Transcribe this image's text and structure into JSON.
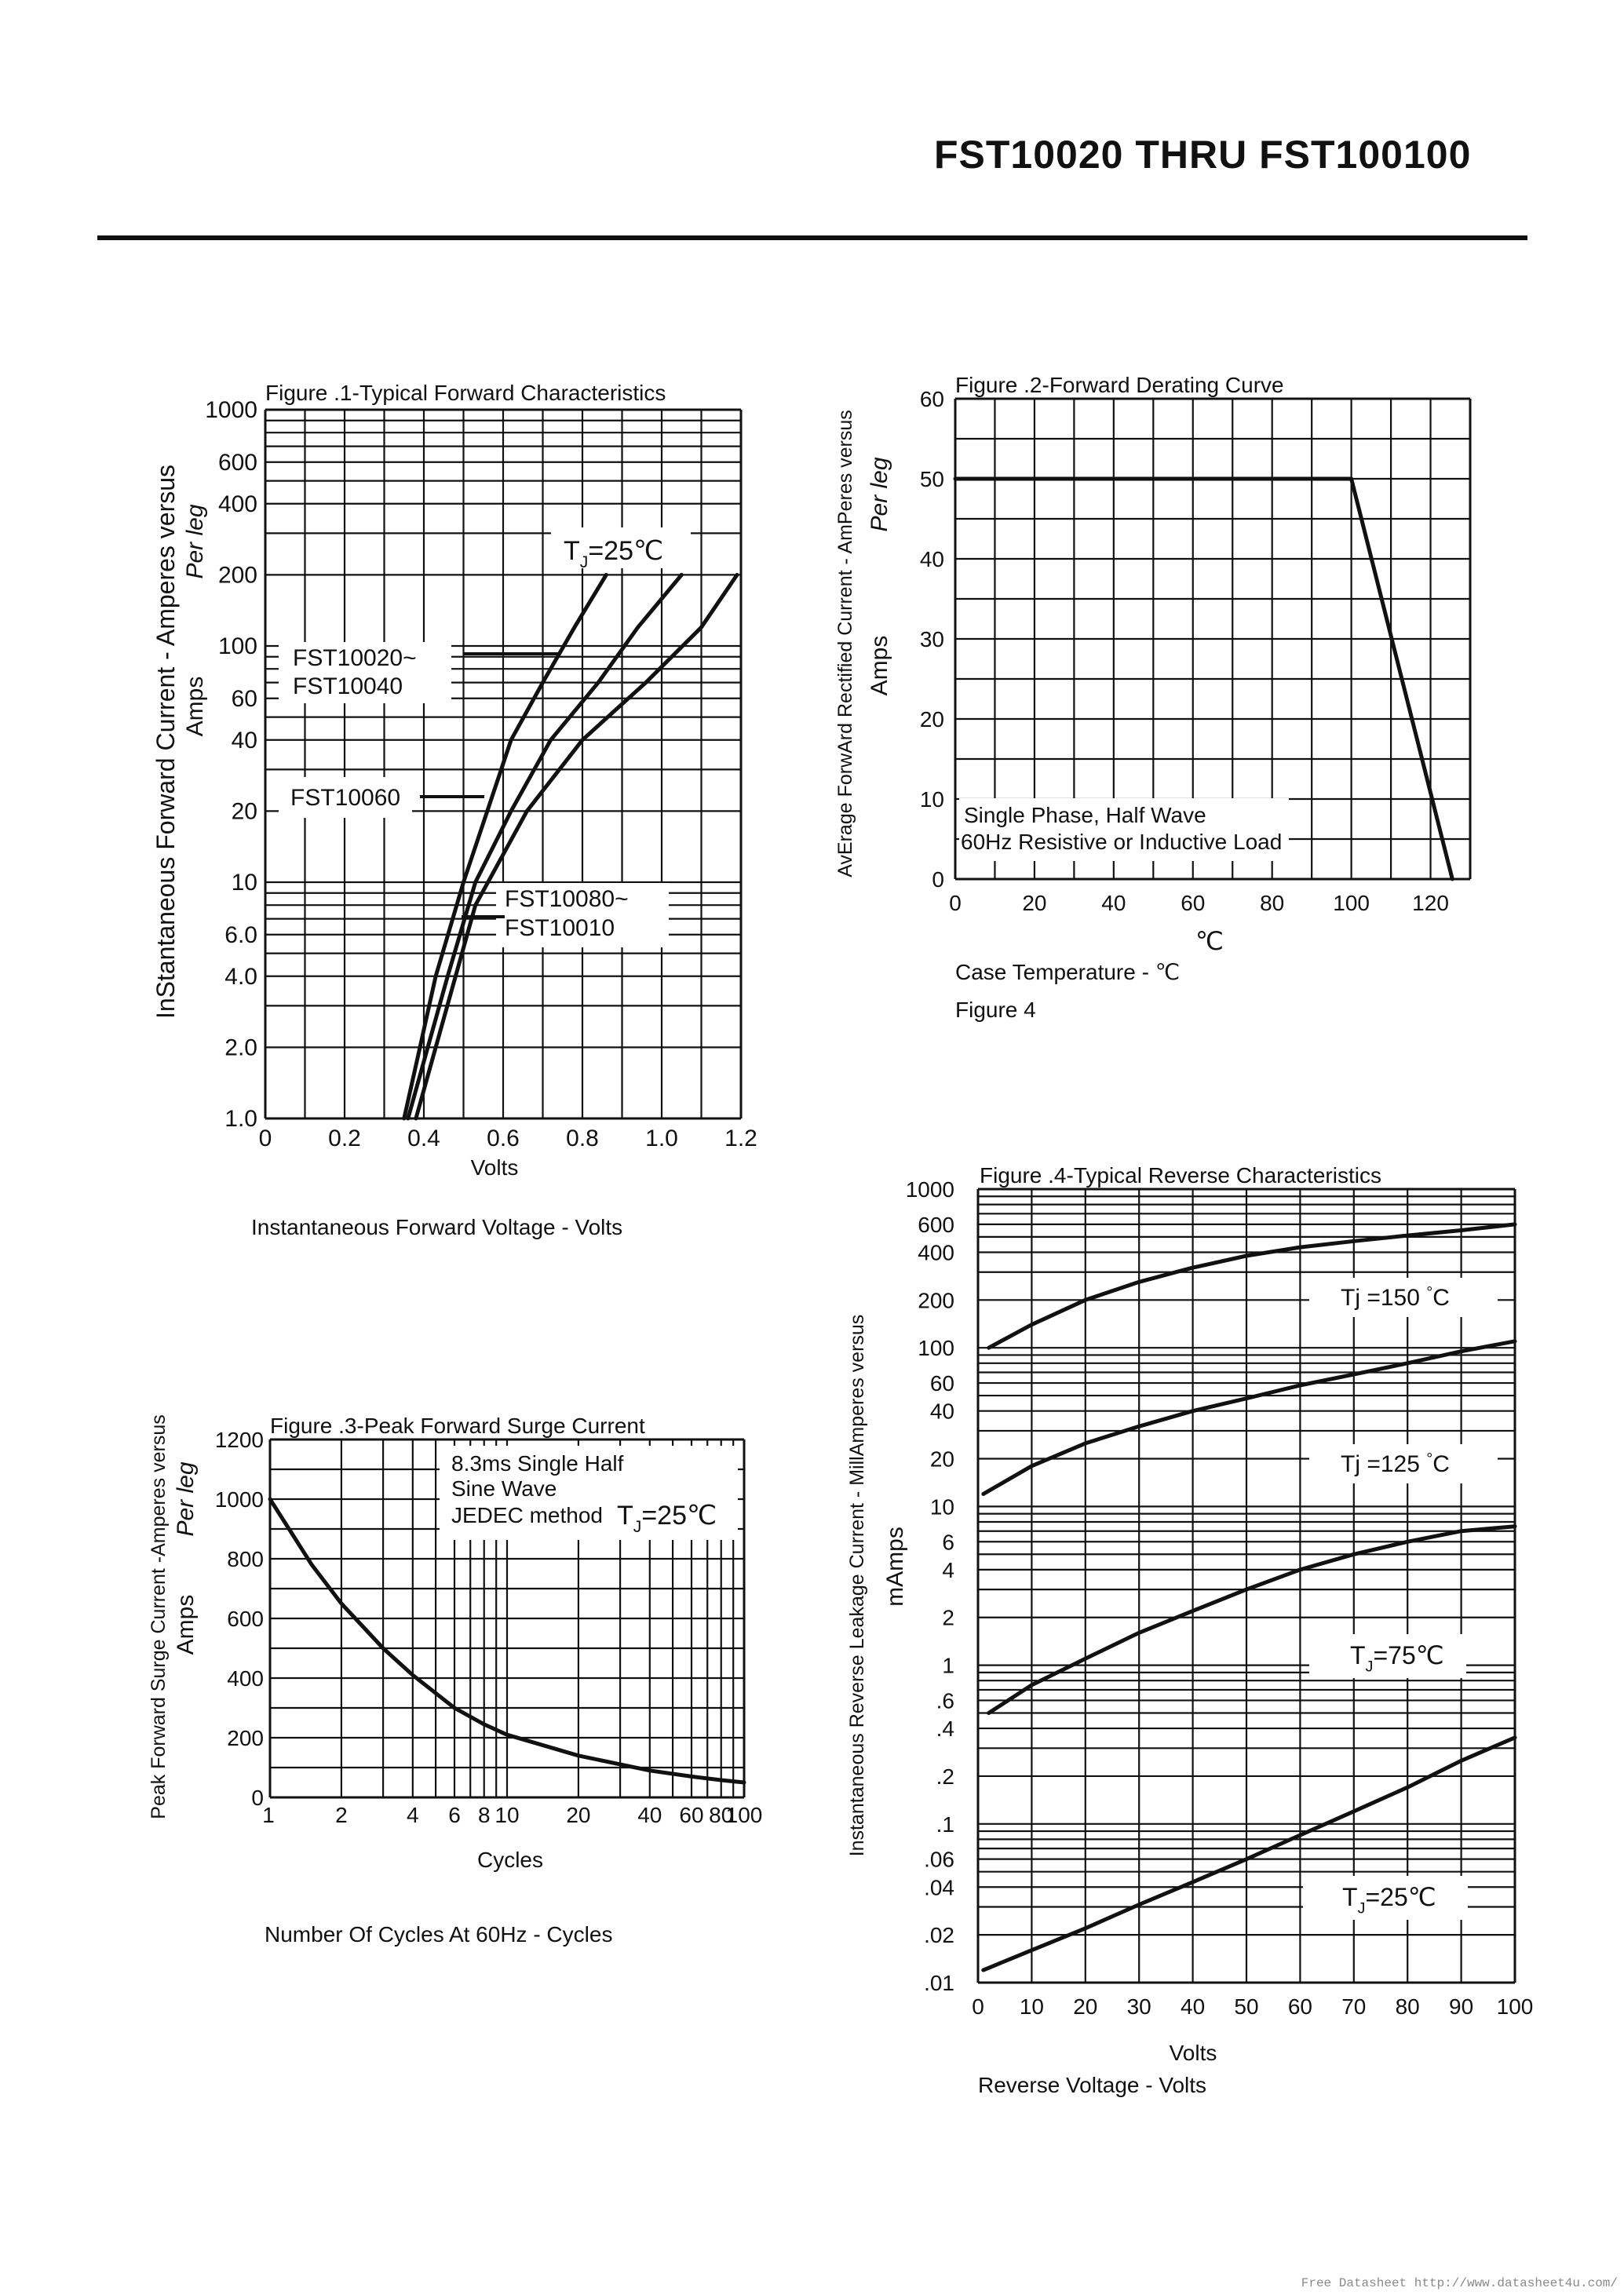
{
  "page_title": "FST10020   THRU   FST100100",
  "footer_credit": "Free Datasheet http://www.datasheet4u.com/",
  "chart_data": [
    {
      "type": "line",
      "title": "Figure .1-Typical Forward Characteristics",
      "xlabel": "Volts",
      "caption": "Instantaneous Forward Voltage - Volts",
      "ylabel": "InStantaneous Forward Current - Amperes versus",
      "ylabel_sub1": "Per leg",
      "ylabel_sub2": "Amps",
      "x_ticks": [
        "0",
        "0.2",
        "0.4",
        "0.6",
        "0.8",
        "1.0",
        "1.2"
      ],
      "y_ticks": [
        "1.0",
        "2.0",
        "4.0",
        "6.0",
        "10",
        "20",
        "40",
        "60",
        "100",
        "200",
        "400",
        "600",
        "1000"
      ],
      "xlim": [
        0,
        1.2
      ],
      "ylim": [
        1,
        1000
      ],
      "y_scale": "log",
      "annotation": "T",
      "annotation_sub": "J",
      "annotation_rest": "=25℃",
      "legend": [
        "FST10020~",
        "FST10040",
        "FST10060",
        "FST10080~",
        "FST10010"
      ],
      "series": [
        {
          "name": "FST10020~FST10040",
          "x": [
            0.35,
            0.39,
            0.43,
            0.5,
            0.56,
            0.62,
            0.7,
            0.78,
            0.86
          ],
          "y": [
            1,
            2,
            4,
            10,
            20,
            40,
            70,
            120,
            200
          ]
        },
        {
          "name": "FST10060",
          "x": [
            0.36,
            0.41,
            0.46,
            0.53,
            0.62,
            0.72,
            0.84,
            0.94,
            1.05
          ],
          "y": [
            1,
            2,
            4,
            10,
            20,
            40,
            70,
            120,
            200
          ]
        },
        {
          "name": "FST10080~FST10010",
          "x": [
            0.38,
            0.43,
            0.48,
            0.53,
            0.66,
            0.8,
            0.96,
            1.1,
            1.19
          ],
          "y": [
            1,
            2,
            4,
            8,
            20,
            40,
            70,
            120,
            200
          ]
        }
      ]
    },
    {
      "type": "line",
      "title": "Figure .2-Forward Derating Curve",
      "xlabel": "Case Temperature  -  ℃",
      "unit_label": "℃",
      "caption": "Figure 4",
      "ylabel": "AvErage ForwArd Rectified Current  -  AmPeres versus",
      "ylabel_sub1": "Per leg",
      "ylabel_sub2": "Amps",
      "x_ticks": [
        "0",
        "20",
        "40",
        "60",
        "80",
        "100",
        "120"
      ],
      "y_ticks": [
        "0",
        "10",
        "20",
        "30",
        "40",
        "50",
        "60"
      ],
      "xlim": [
        0,
        130
      ],
      "ylim": [
        0,
        60
      ],
      "annotation_line1": "Single Phase, Half Wave",
      "annotation_line2": "60Hz Resistive or Inductive Load",
      "series": [
        {
          "name": "Derating",
          "x": [
            0,
            100,
            125.5
          ],
          "y": [
            50,
            50,
            0
          ]
        }
      ]
    },
    {
      "type": "line",
      "title": "Figure .3-Peak Forward Surge Current",
      "xlabel": "Cycles",
      "caption": "Number Of Cycles At 60Hz - Cycles",
      "ylabel": "Peak Forward Surge Current -Amperes versus",
      "ylabel_sub1": "Per leg",
      "ylabel_sub2": "Amps",
      "x_ticks": [
        "1",
        "2",
        "4",
        "6",
        "8",
        "10",
        "20",
        "40",
        "60",
        "80",
        "100"
      ],
      "y_ticks": [
        "0",
        "200",
        "400",
        "600",
        "800",
        "1000",
        "1200"
      ],
      "xlim": [
        1,
        100
      ],
      "x_scale": "log",
      "ylim": [
        0,
        1200
      ],
      "annotation_line1": "8.3ms Single Half",
      "annotation_line2": "Sine Wave",
      "annotation_line3": "JEDEC method",
      "annotation_tj": "T",
      "annotation_tj_sub": "J",
      "annotation_tj_rest": "=25℃",
      "series": [
        {
          "name": "Surge",
          "x": [
            1,
            1.5,
            2,
            3,
            4,
            6,
            8,
            10,
            20,
            40,
            60,
            80,
            100
          ],
          "y": [
            1000,
            780,
            650,
            500,
            410,
            300,
            245,
            210,
            140,
            90,
            70,
            58,
            50
          ]
        }
      ]
    },
    {
      "type": "line",
      "title": "Figure .4-Typical Reverse Characteristics",
      "xlabel": "Volts",
      "caption": "Reverse Voltage - Volts",
      "ylabel": "Instantaneous Reverse Leakage Current -  MillAmperes versus",
      "ylabel_sub2": "mAmps",
      "x_ticks": [
        "0",
        "10",
        "20",
        "30",
        "40",
        "50",
        "60",
        "70",
        "80",
        "90",
        "100"
      ],
      "y_ticks": [
        ".01",
        ".02",
        ".04",
        ".06",
        ".1",
        ".2",
        ".4",
        ".6",
        "1",
        "2",
        "4",
        "6",
        "10",
        "20",
        "40",
        "60",
        "100",
        "200",
        "400",
        "600",
        "1000"
      ],
      "xlim": [
        0,
        100
      ],
      "ylim": [
        0.01,
        1000
      ],
      "y_scale": "log",
      "series": [
        {
          "name": "Tj =150°C",
          "label_main": "Tj =150",
          "label_deg": "°",
          "label_unit": "C",
          "x": [
            2,
            10,
            20,
            30,
            40,
            50,
            60,
            70,
            80,
            90,
            100
          ],
          "y": [
            100,
            140,
            200,
            260,
            320,
            380,
            430,
            470,
            510,
            550,
            600
          ]
        },
        {
          "name": "Tj =125°C",
          "label_main": "Tj =125",
          "label_deg": "°",
          "label_unit": "C",
          "x": [
            1,
            10,
            20,
            30,
            40,
            50,
            60,
            70,
            80,
            90,
            100
          ],
          "y": [
            12,
            18,
            25,
            32,
            40,
            48,
            58,
            68,
            80,
            95,
            110
          ]
        },
        {
          "name": "TJ=75°C",
          "label_main": "T",
          "label_sub": "J",
          "label_rest": "=75℃",
          "x": [
            2,
            10,
            20,
            30,
            40,
            50,
            60,
            70,
            80,
            90,
            100
          ],
          "y": [
            0.5,
            0.75,
            1.1,
            1.6,
            2.2,
            3.0,
            4.0,
            5.0,
            6.0,
            7.0,
            7.5
          ]
        },
        {
          "name": "TJ=25°C",
          "label_main": "T",
          "label_sub": "J",
          "label_rest": "=25℃",
          "x": [
            1,
            10,
            20,
            30,
            40,
            50,
            60,
            70,
            80,
            90,
            100
          ],
          "y": [
            0.012,
            0.016,
            0.022,
            0.031,
            0.043,
            0.06,
            0.085,
            0.12,
            0.17,
            0.25,
            0.35
          ]
        }
      ]
    }
  ]
}
